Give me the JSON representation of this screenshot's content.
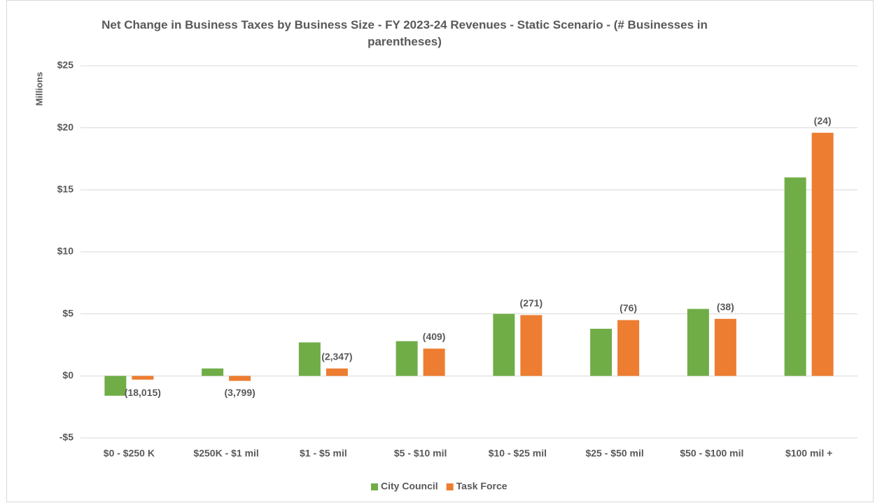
{
  "chart_data": {
    "type": "bar",
    "title": "Net Change in Business Taxes by Business Size - FY 2023-24 Revenues - Static Scenario - (# Businesses in parentheses)",
    "ylabel": "Millions",
    "categories": [
      "$0 - $250 K",
      "$250K - $1 mil",
      "$1 - $5 mil",
      "$5 - $10 mil",
      "$10 - $25 mil",
      "$25 - $50 mil",
      "$50 - $100 mil",
      "$100 mil +"
    ],
    "series": [
      {
        "name": "City Council",
        "color": "#70ad47",
        "values": [
          -1.6,
          0.6,
          2.7,
          2.8,
          5.0,
          3.8,
          5.4,
          16.0
        ]
      },
      {
        "name": "Task Force",
        "color": "#ed7d31",
        "values": [
          -0.3,
          -0.4,
          0.6,
          2.2,
          4.9,
          4.5,
          4.6,
          19.6
        ]
      }
    ],
    "annotations": [
      "(18,015)",
      "(3,799)",
      "(2,347)",
      "(409)",
      "(271)",
      "(76)",
      "(38)",
      "(24)"
    ],
    "ylim": [
      -5,
      25
    ],
    "yticks": [
      {
        "value": -5,
        "label": "-$5"
      },
      {
        "value": 0,
        "label": "$0"
      },
      {
        "value": 5,
        "label": "$5"
      },
      {
        "value": 10,
        "label": "$10"
      },
      {
        "value": 15,
        "label": "$15"
      },
      {
        "value": 20,
        "label": "$20"
      },
      {
        "value": 25,
        "label": "$25"
      }
    ],
    "grid": true,
    "legend": "bottom"
  }
}
